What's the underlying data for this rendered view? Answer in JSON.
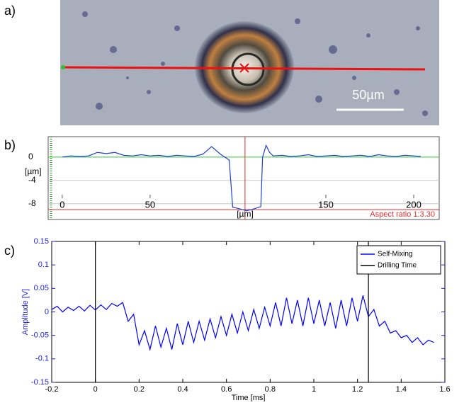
{
  "panel_labels": [
    "a)",
    "b)",
    "c)"
  ],
  "image": {
    "scale_bar": "50µm"
  },
  "chart_data": [
    {
      "type": "line",
      "ylabel": "[µm]",
      "xlabel": "[µm]",
      "annotation": "Aspect ratio 1:3.30",
      "x": [
        0,
        5,
        10,
        15,
        20,
        25,
        30,
        35,
        40,
        45,
        50,
        55,
        60,
        65,
        70,
        75,
        80,
        85,
        90,
        95,
        97,
        100,
        105,
        110,
        113,
        114,
        116,
        118,
        120,
        125,
        130,
        135,
        140,
        145,
        150,
        155,
        160,
        165,
        170,
        175,
        180,
        185,
        190,
        195,
        200,
        204
      ],
      "series": [
        {
          "color": "#1f3fcf",
          "values": [
            0,
            0.2,
            0.1,
            0.2,
            0.8,
            0.6,
            0.8,
            0.3,
            0.2,
            0.4,
            0.2,
            0.3,
            0.1,
            0.3,
            0.2,
            0.1,
            0.5,
            1.8,
            0.5,
            -0.5,
            -8.6,
            -8.8,
            -9.2,
            -8.8,
            -8.5,
            0,
            2.0,
            0.8,
            0.2,
            0.3,
            0.1,
            0.2,
            0.4,
            0.1,
            0.2,
            0.3,
            0.1,
            0.2,
            0.3,
            0.1,
            0.4,
            0.2,
            0.1,
            0.3,
            0.2,
            0.1
          ]
        }
      ],
      "xlim": [
        -8,
        214.5
      ],
      "ylim": [
        -10.7,
        3.5
      ],
      "xticks": [
        0,
        50,
        150,
        200
      ],
      "yticks": [
        -8,
        -4,
        0
      ],
      "grid": true,
      "reference_lines": {
        "x": 104,
        "y": -9,
        "color": "#e03030"
      }
    },
    {
      "type": "line",
      "xlabel": "Time [ms]",
      "ylabel": "Amplitude [V]",
      "x": [
        -0.2,
        -0.175,
        -0.15,
        -0.125,
        -0.1,
        -0.075,
        -0.05,
        -0.025,
        0,
        0.025,
        0.05,
        0.075,
        0.1,
        0.125,
        0.15,
        0.175,
        0.2,
        0.225,
        0.25,
        0.275,
        0.3,
        0.325,
        0.35,
        0.375,
        0.4,
        0.425,
        0.45,
        0.475,
        0.5,
        0.525,
        0.55,
        0.575,
        0.6,
        0.625,
        0.65,
        0.675,
        0.7,
        0.725,
        0.75,
        0.775,
        0.8,
        0.825,
        0.85,
        0.875,
        0.9,
        0.925,
        0.95,
        0.975,
        1.0,
        1.025,
        1.05,
        1.075,
        1.1,
        1.125,
        1.15,
        1.175,
        1.2,
        1.225,
        1.25,
        1.275,
        1.3,
        1.325,
        1.35,
        1.375,
        1.4,
        1.425,
        1.45,
        1.475,
        1.5,
        1.525,
        1.55
      ],
      "series": [
        {
          "name": "Self-Mixing",
          "color": "#0000ff",
          "values": [
            0.005,
            0.012,
            0,
            0.01,
            0.003,
            0.012,
            0.002,
            0.014,
            0.004,
            0.015,
            0.005,
            0.018,
            0.012,
            0.02,
            -0.02,
            -0.005,
            -0.07,
            -0.04,
            -0.08,
            -0.03,
            -0.075,
            -0.035,
            -0.08,
            -0.025,
            -0.07,
            -0.02,
            -0.065,
            -0.02,
            -0.06,
            -0.015,
            -0.055,
            -0.01,
            -0.05,
            -0.005,
            -0.045,
            0,
            -0.04,
            0.005,
            -0.035,
            0.01,
            -0.03,
            0.02,
            -0.03,
            0.03,
            -0.025,
            0.025,
            -0.03,
            0.03,
            -0.025,
            0.025,
            -0.03,
            0.02,
            -0.035,
            0.025,
            -0.03,
            0.03,
            -0.02,
            0.035,
            -0.01,
            0.005,
            -0.03,
            -0.02,
            -0.045,
            -0.04,
            -0.055,
            -0.05,
            -0.065,
            -0.055,
            -0.07,
            -0.06,
            -0.065
          ]
        },
        {
          "name": "Drilling Time",
          "color": "#000000",
          "vlines": [
            0,
            1.25
          ]
        }
      ],
      "xlim": [
        -0.2,
        1.6
      ],
      "ylim": [
        -0.15,
        0.15
      ],
      "xticks": [
        -0.2,
        0,
        0.2,
        0.4,
        0.6,
        0.8,
        1,
        1.2,
        1.4,
        1.6
      ],
      "yticks": [
        -0.15,
        -0.1,
        -0.05,
        0,
        0.05,
        0.1,
        0.15
      ],
      "legend": "upper right",
      "axis_color": "#2020e0"
    }
  ]
}
